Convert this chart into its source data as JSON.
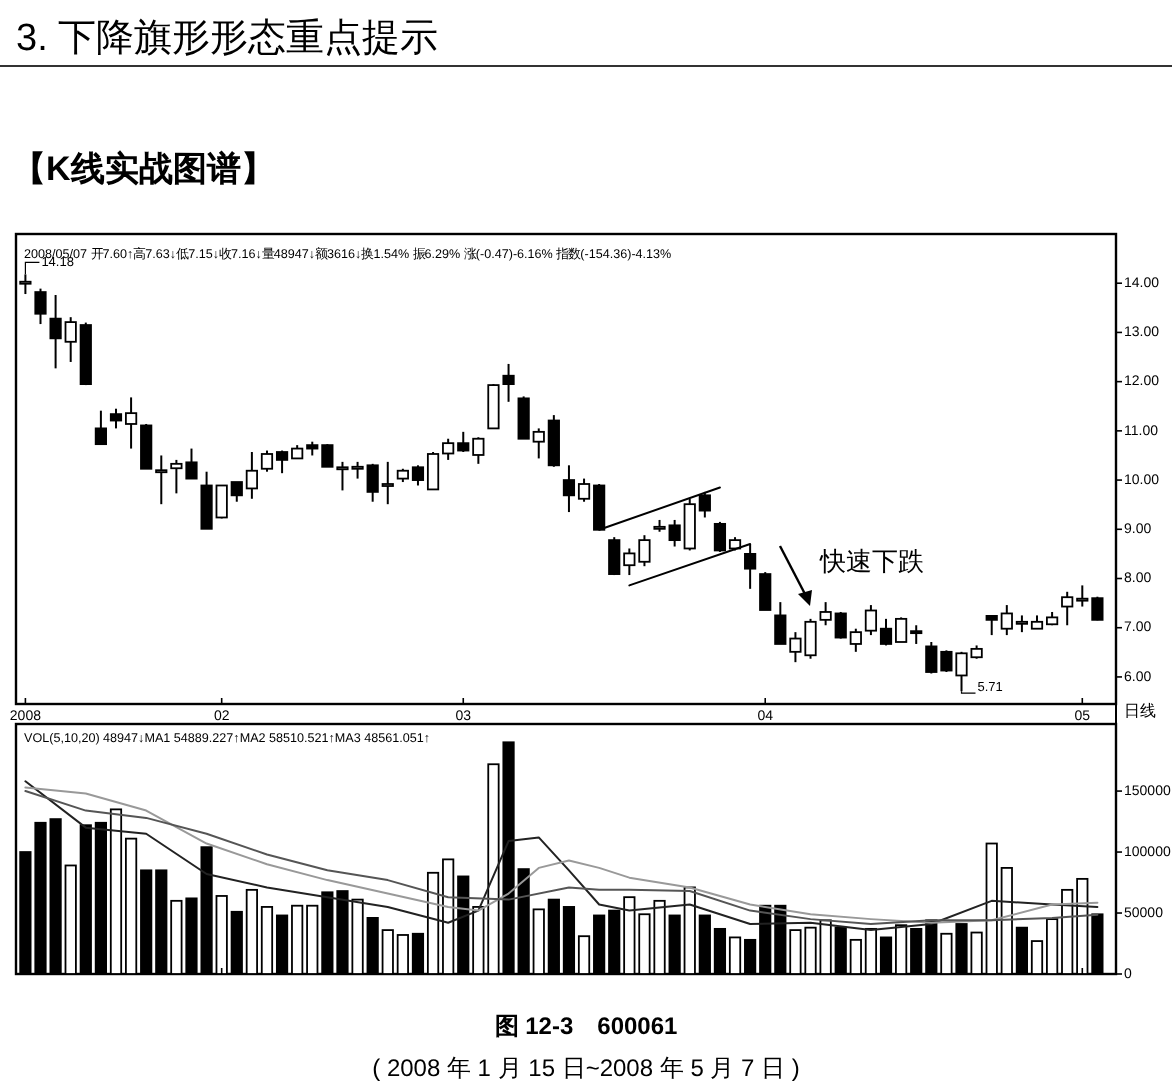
{
  "chart_data": [
    {
      "type": "candlestick",
      "title": "3. 下降旗形形态重点提示",
      "subtitle": "【K线实战图谱】",
      "categories": [
        "2008",
        null,
        null,
        null,
        null,
        null,
        null,
        null,
        null,
        null,
        null,
        null,
        null,
        "02",
        null,
        null,
        null,
        null,
        null,
        null,
        null,
        null,
        null,
        null,
        null,
        null,
        null,
        null,
        null,
        "03",
        null,
        null,
        null,
        null,
        null,
        null,
        null,
        null,
        null,
        null,
        null,
        null,
        null,
        null,
        null,
        null,
        null,
        null,
        null,
        "04",
        null,
        null,
        null,
        null,
        null,
        null,
        null,
        null,
        null,
        null,
        null,
        null,
        null,
        null,
        null,
        null,
        null,
        null,
        null,
        null,
        "05",
        null
      ],
      "ohlc": [
        [
          14.03,
          14.18,
          13.78,
          14.03
        ],
        [
          13.82,
          13.89,
          13.17,
          13.38
        ],
        [
          13.28,
          13.76,
          12.27,
          12.88
        ],
        [
          12.81,
          13.31,
          12.4,
          13.21
        ],
        [
          13.15,
          13.2,
          11.93,
          11.95
        ],
        [
          11.05,
          11.41,
          10.73,
          10.73
        ],
        [
          11.34,
          11.45,
          11.05,
          11.21
        ],
        [
          11.14,
          11.68,
          10.64,
          11.36
        ],
        [
          11.11,
          11.14,
          10.23,
          10.23
        ],
        [
          10.16,
          10.5,
          9.51,
          10.2
        ],
        [
          10.24,
          10.41,
          9.73,
          10.33
        ],
        [
          10.36,
          10.64,
          10.03,
          10.03
        ],
        [
          9.89,
          10.17,
          9.01,
          9.01
        ],
        [
          9.24,
          9.89,
          9.22,
          9.89
        ],
        [
          9.96,
          9.96,
          9.56,
          9.69
        ],
        [
          9.83,
          10.57,
          9.62,
          10.19
        ],
        [
          10.23,
          10.6,
          10.17,
          10.53
        ],
        [
          10.57,
          10.6,
          10.14,
          10.41
        ],
        [
          10.44,
          10.71,
          10.44,
          10.64
        ],
        [
          10.71,
          10.78,
          10.5,
          10.64
        ],
        [
          10.71,
          10.73,
          10.27,
          10.27
        ],
        [
          10.26,
          10.37,
          9.79,
          10.26
        ],
        [
          10.24,
          10.37,
          10.03,
          10.27
        ],
        [
          10.3,
          10.33,
          9.56,
          9.76
        ],
        [
          9.92,
          10.37,
          9.51,
          9.92
        ],
        [
          10.03,
          10.23,
          9.96,
          10.19
        ],
        [
          10.26,
          10.3,
          9.89,
          10.0
        ],
        [
          9.81,
          10.57,
          9.81,
          10.53
        ],
        [
          10.54,
          10.84,
          10.41,
          10.75
        ],
        [
          10.75,
          10.98,
          10.57,
          10.6
        ],
        [
          10.51,
          10.87,
          10.33,
          10.84
        ],
        [
          11.05,
          11.95,
          11.05,
          11.93
        ],
        [
          12.12,
          12.36,
          11.59,
          11.95
        ],
        [
          11.66,
          11.7,
          10.84,
          10.84
        ],
        [
          10.78,
          11.05,
          10.44,
          10.98
        ],
        [
          11.21,
          11.32,
          10.27,
          10.3
        ],
        [
          10.0,
          10.3,
          9.35,
          9.69
        ],
        [
          9.62,
          10.03,
          9.56,
          9.92
        ],
        [
          9.89,
          9.92,
          8.99,
          8.99
        ],
        [
          8.78,
          8.84,
          8.07,
          8.09
        ],
        [
          8.27,
          8.61,
          8.07,
          8.51
        ],
        [
          8.34,
          8.88,
          8.25,
          8.78
        ],
        [
          9.05,
          9.19,
          8.95,
          9.05
        ],
        [
          9.08,
          9.19,
          8.65,
          8.78
        ],
        [
          8.61,
          9.62,
          8.57,
          9.51
        ],
        [
          9.69,
          9.76,
          9.24,
          9.38
        ],
        [
          9.11,
          9.15,
          8.54,
          8.57
        ],
        [
          8.61,
          8.84,
          8.57,
          8.78
        ],
        [
          8.5,
          8.7,
          7.79,
          8.2
        ],
        [
          8.09,
          8.13,
          7.36,
          7.36
        ],
        [
          7.25,
          7.52,
          6.67,
          6.67
        ],
        [
          6.51,
          6.91,
          6.3,
          6.78
        ],
        [
          6.44,
          7.18,
          6.37,
          7.12
        ],
        [
          7.16,
          7.52,
          7.05,
          7.32
        ],
        [
          7.29,
          7.32,
          6.78,
          6.8
        ],
        [
          6.67,
          6.98,
          6.51,
          6.91
        ],
        [
          6.94,
          7.46,
          6.85,
          7.35
        ],
        [
          6.98,
          7.18,
          6.64,
          6.67
        ],
        [
          6.71,
          7.21,
          6.71,
          7.18
        ],
        [
          6.93,
          7.05,
          6.67,
          6.89
        ],
        [
          6.62,
          6.71,
          6.07,
          6.1
        ],
        [
          6.51,
          6.54,
          6.1,
          6.13
        ],
        [
          6.03,
          6.51,
          5.71,
          6.48
        ],
        [
          6.4,
          6.64,
          6.37,
          6.57
        ],
        [
          7.24,
          7.24,
          6.85,
          7.16
        ],
        [
          6.98,
          7.46,
          6.85,
          7.29
        ],
        [
          7.12,
          7.25,
          6.91,
          7.12
        ],
        [
          6.98,
          7.25,
          6.98,
          7.12
        ],
        [
          7.07,
          7.32,
          7.05,
          7.21
        ],
        [
          7.43,
          7.73,
          7.05,
          7.62
        ],
        [
          7.59,
          7.86,
          7.43,
          7.59
        ],
        [
          7.6,
          7.63,
          7.15,
          7.16
        ]
      ],
      "series": [
        {
          "type": "line",
          "color": "#000000",
          "values": [
            null,
            null,
            null,
            null,
            null,
            null,
            null,
            null,
            null,
            null,
            null,
            null,
            null,
            null,
            null,
            null,
            null,
            null,
            null,
            null,
            null,
            null,
            null,
            null,
            null,
            null,
            null,
            null,
            null,
            null,
            null,
            null,
            null,
            null,
            null,
            null,
            null,
            null,
            8.99,
            null,
            null,
            null,
            null,
            null,
            null,
            null,
            9.85,
            null,
            null,
            null,
            null,
            null,
            null,
            null,
            null,
            null,
            null,
            null,
            null,
            null,
            null,
            null,
            null,
            null,
            null,
            null,
            null,
            null,
            null,
            null,
            null,
            null
          ]
        },
        {
          "type": "line",
          "color": "#000000",
          "values": [
            null,
            null,
            null,
            null,
            null,
            null,
            null,
            null,
            null,
            null,
            null,
            null,
            null,
            null,
            null,
            null,
            null,
            null,
            null,
            null,
            null,
            null,
            null,
            null,
            null,
            null,
            null,
            null,
            null,
            null,
            null,
            null,
            null,
            null,
            null,
            null,
            null,
            null,
            null,
            null,
            7.86,
            null,
            null,
            null,
            null,
            null,
            null,
            null,
            8.7,
            null,
            null,
            null,
            null,
            null,
            null,
            null,
            null,
            null,
            null,
            null,
            null,
            null,
            null,
            null,
            null,
            null,
            null,
            null,
            null,
            null,
            null,
            null
          ]
        }
      ],
      "ylim": [
        5.45,
        15.0
      ],
      "yticks": [
        {
          "value": 6,
          "label": "6.00"
        },
        {
          "value": 7,
          "label": "7.00"
        },
        {
          "value": 8,
          "label": "8.00"
        },
        {
          "value": 9,
          "label": "9.00"
        },
        {
          "value": 10,
          "label": "10.00"
        },
        {
          "value": 11,
          "label": "11.00"
        },
        {
          "value": 12,
          "label": "12.00"
        },
        {
          "value": 13,
          "label": "13.00"
        },
        {
          "value": 14,
          "label": "14.00"
        }
      ],
      "annotations": [
        "2008/05/07 开7.60↑高7.63↓低7.15↓收7.16↓量48947↓额3616↓换1.54% 振6.29% 涨(-0.47)-6.16% 指数(-154.36)-4.13%",
        "14.18",
        "5.71",
        "快速下跌",
        "日线"
      ]
    },
    {
      "type": "bar",
      "categories": [
        "2008",
        null,
        null,
        null,
        null,
        null,
        null,
        null,
        null,
        null,
        null,
        null,
        null,
        "02",
        null,
        null,
        null,
        null,
        null,
        null,
        null,
        null,
        null,
        null,
        null,
        null,
        null,
        null,
        null,
        "03",
        null,
        null,
        null,
        null,
        null,
        null,
        null,
        null,
        null,
        null,
        null,
        null,
        null,
        null,
        null,
        null,
        null,
        null,
        null,
        "04",
        null,
        null,
        null,
        null,
        null,
        null,
        null,
        null,
        null,
        null,
        null,
        null,
        null,
        null,
        null,
        null,
        null,
        null,
        null,
        null,
        "05",
        null
      ],
      "tick_labels": "y",
      "series": [
        {
          "values": [
            100000,
            124000,
            127000,
            89000,
            122000,
            124000,
            135000,
            111000,
            85000,
            85000,
            60000,
            62000,
            104000,
            64000,
            51000,
            69000,
            55000,
            48000,
            56000,
            56000,
            67000,
            68000,
            61000,
            46000,
            36000,
            32000,
            33000,
            83000,
            94000,
            80000,
            55000,
            172000,
            190000,
            86000,
            53000,
            61000,
            55000,
            31000,
            48000,
            52000,
            63000,
            49000,
            60000,
            48000,
            71000,
            48000,
            37000,
            30000,
            28000,
            56000,
            56000,
            36000,
            38000,
            44000,
            38000,
            28000,
            37000,
            30000,
            40000,
            37000,
            44000,
            33000,
            41000,
            34000,
            107000,
            87000,
            38000,
            27000,
            45000,
            69000,
            78000,
            48947
          ],
          "colors": [
            "#000000",
            "#000000",
            "#000000",
            "#ffffff",
            "#000000",
            "#000000",
            "#ffffff",
            "#ffffff",
            "#000000",
            "#000000",
            "#ffffff",
            "#000000",
            "#000000",
            "#ffffff",
            "#000000",
            "#ffffff",
            "#ffffff",
            "#000000",
            "#ffffff",
            "#ffffff",
            "#000000",
            "#000000",
            "#ffffff",
            "#000000",
            "#ffffff",
            "#ffffff",
            "#000000",
            "#ffffff",
            "#ffffff",
            "#000000",
            "#ffffff",
            "#ffffff",
            "#000000",
            "#000000",
            "#ffffff",
            "#000000",
            "#000000",
            "#ffffff",
            "#000000",
            "#000000",
            "#ffffff",
            "#ffffff",
            "#ffffff",
            "#000000",
            "#ffffff",
            "#000000",
            "#000000",
            "#ffffff",
            "#000000",
            "#000000",
            "#000000",
            "#ffffff",
            "#ffffff",
            "#ffffff",
            "#000000",
            "#ffffff",
            "#ffffff",
            "#000000",
            "#ffffff",
            "#000000",
            "#000000",
            "#ffffff",
            "#000000",
            "#ffffff",
            "#ffffff",
            "#ffffff",
            "#000000",
            "#ffffff",
            "#ffffff",
            "#ffffff",
            "#ffffff",
            "#000000"
          ]
        },
        {
          "type": "line",
          "color": "#222222",
          "values": [
            158000,
            null,
            null,
            null,
            120000,
            null,
            null,
            null,
            115000,
            null,
            null,
            null,
            82000,
            null,
            null,
            null,
            71000,
            null,
            null,
            null,
            63000,
            null,
            null,
            null,
            55000,
            null,
            null,
            null,
            42000,
            null,
            52000,
            null,
            109000,
            null,
            112000,
            null,
            85000,
            null,
            57000,
            null,
            52000,
            null,
            null,
            null,
            57000,
            null,
            null,
            null,
            41000,
            null,
            null,
            null,
            42000,
            null,
            null,
            null,
            36000,
            null,
            null,
            null,
            41000,
            null,
            null,
            null,
            60000,
            null,
            null,
            null,
            57000,
            null,
            null,
            54889
          ]
        },
        {
          "type": "line",
          "color": "#999999",
          "values": [
            153000,
            null,
            null,
            null,
            148000,
            null,
            null,
            null,
            134000,
            null,
            null,
            null,
            107000,
            null,
            null,
            null,
            90000,
            null,
            null,
            null,
            77000,
            null,
            null,
            null,
            66000,
            null,
            null,
            null,
            55000,
            null,
            52000,
            null,
            66000,
            null,
            87000,
            null,
            93000,
            null,
            87000,
            null,
            79000,
            null,
            null,
            null,
            71000,
            null,
            null,
            null,
            57000,
            null,
            null,
            null,
            49000,
            null,
            null,
            null,
            45000,
            null,
            null,
            null,
            42000,
            null,
            null,
            null,
            44000,
            null,
            null,
            null,
            57000,
            null,
            null,
            58510
          ]
        },
        {
          "type": "line",
          "color": "#555555",
          "values": [
            150000,
            null,
            null,
            null,
            134000,
            null,
            null,
            null,
            128000,
            null,
            null,
            null,
            115000,
            null,
            null,
            null,
            98000,
            null,
            null,
            null,
            85000,
            null,
            null,
            null,
            77000,
            null,
            null,
            null,
            63000,
            null,
            null,
            null,
            61000,
            null,
            null,
            null,
            71000,
            null,
            69000,
            null,
            69000,
            null,
            null,
            null,
            68000,
            null,
            null,
            null,
            52000,
            null,
            null,
            null,
            45000,
            null,
            null,
            null,
            41000,
            null,
            null,
            null,
            44000,
            null,
            null,
            null,
            44000,
            null,
            null,
            null,
            46000,
            null,
            null,
            48561
          ]
        }
      ],
      "ylim": [
        0,
        205000
      ],
      "yticks": [
        0,
        50000,
        100000,
        150000
      ],
      "annotations": [
        "VOL(5,10,20) 48947↓MA1 54889.227↑MA2 58510.521↑MA3 48561.051↑",
        "图 12-3　600061",
        "( 2008 年 1 月 15 日~2008 年 5 月 7 日 )"
      ]
    }
  ]
}
